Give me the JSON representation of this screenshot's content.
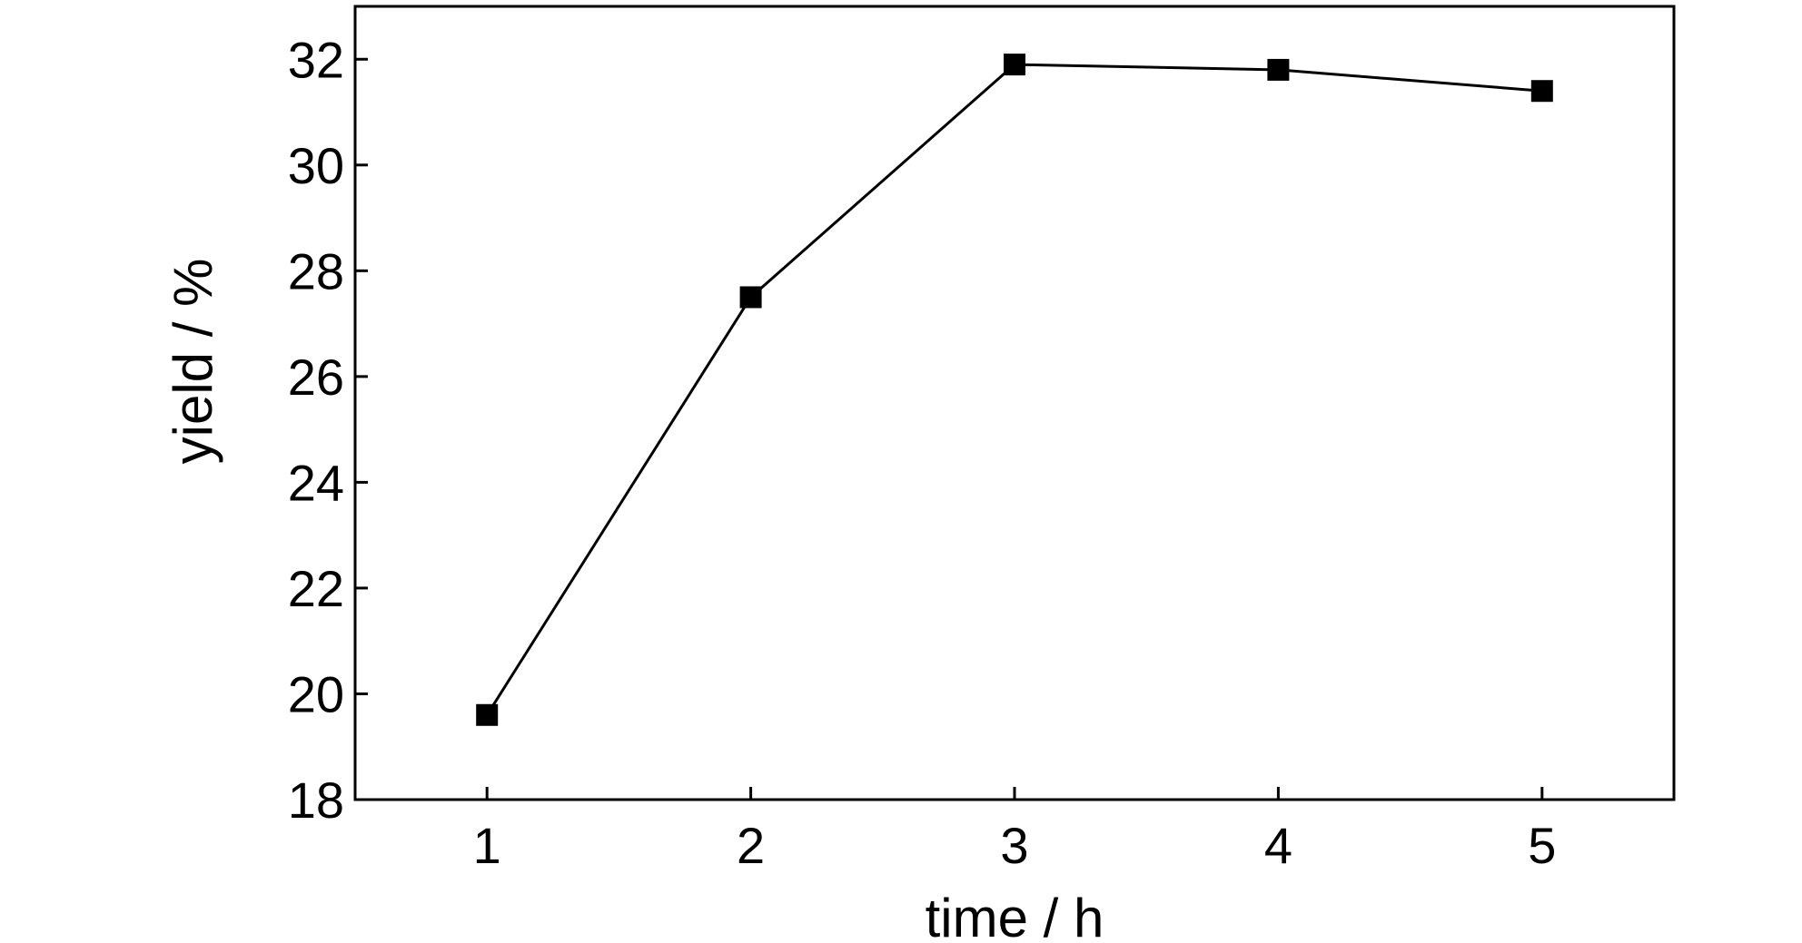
{
  "chart_data": {
    "type": "line",
    "title": "",
    "xlabel": "time / h",
    "ylabel": "yield / %",
    "x": [
      1,
      2,
      3,
      4,
      5
    ],
    "xlim": [
      0.5,
      5.5
    ],
    "ylim": [
      18,
      33
    ],
    "xticks": [
      1,
      2,
      3,
      4,
      5
    ],
    "yticks": [
      18,
      20,
      22,
      24,
      26,
      28,
      30,
      32
    ],
    "xtick_labels": [
      "1",
      "2",
      "3",
      "4",
      "5"
    ],
    "ytick_labels": [
      "18",
      "20",
      "22",
      "24",
      "26",
      "28",
      "30",
      "32"
    ],
    "grid": false,
    "legend": "none",
    "series": [
      {
        "values": [
          19.6,
          27.5,
          31.9,
          31.8,
          31.4
        ],
        "color": "#000000",
        "marker": "square"
      }
    ]
  }
}
